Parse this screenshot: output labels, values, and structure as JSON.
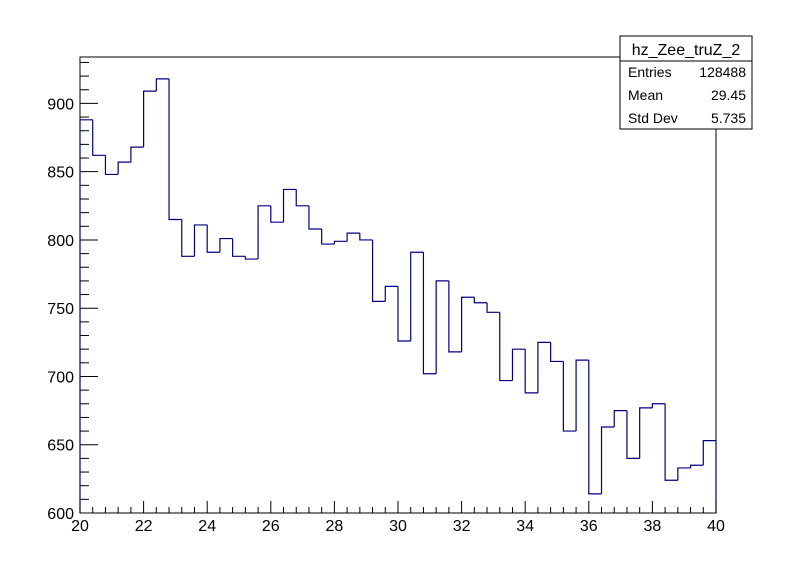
{
  "chart_data": {
    "type": "histogram",
    "title": "",
    "xlabel": "",
    "ylabel": "",
    "xlim": [
      20,
      40
    ],
    "ylim": [
      600,
      934
    ],
    "bin_width": 0.4,
    "bin_edges_start": 20,
    "values": [
      888,
      862,
      848,
      857,
      868,
      909,
      918,
      815,
      788,
      811,
      791,
      801,
      788,
      786,
      825,
      813,
      837,
      825,
      808,
      797,
      799,
      805,
      800,
      755,
      766,
      726,
      791,
      702,
      770,
      718,
      758,
      754,
      747,
      697,
      720,
      688,
      725,
      711,
      660,
      712,
      614,
      663,
      675,
      640,
      677,
      680,
      624,
      633,
      635,
      653
    ],
    "x_ticks": [
      "20",
      "22",
      "24",
      "26",
      "28",
      "30",
      "32",
      "34",
      "36",
      "38",
      "40"
    ],
    "y_ticks": [
      "600",
      "650",
      "700",
      "750",
      "800",
      "850",
      "900"
    ],
    "line_color": "#000080",
    "grid": false
  },
  "stats_box": {
    "name": "hz_Zee_truZ_2",
    "rows": [
      {
        "label": "Entries",
        "value": "128488"
      },
      {
        "label": "Mean",
        "value": "29.45"
      },
      {
        "label": "Std Dev",
        "value": "5.735"
      }
    ]
  }
}
